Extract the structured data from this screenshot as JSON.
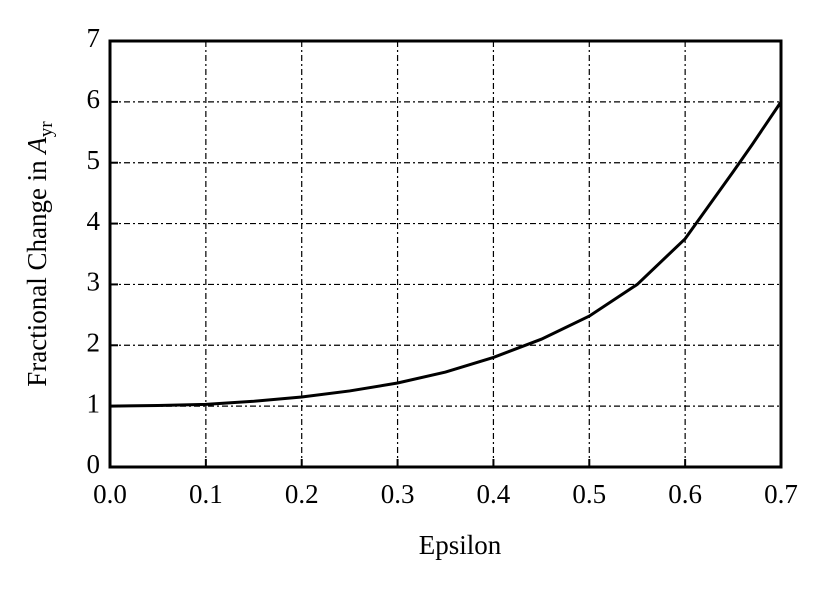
{
  "chart_data": {
    "type": "line",
    "xlabel": "Epsilon",
    "ylabel": {
      "text": "Fractional Change in ",
      "symbol": "A",
      "subscript": "yr"
    },
    "x": [
      0,
      0.05,
      0.1,
      0.15,
      0.2,
      0.25,
      0.3,
      0.35,
      0.4,
      0.45,
      0.5,
      0.55,
      0.6,
      0.65,
      0.67,
      0.7
    ],
    "series": [
      {
        "color": "#000000",
        "values": [
          1.0,
          1.01,
          1.03,
          1.08,
          1.15,
          1.25,
          1.38,
          1.56,
          1.8,
          2.1,
          2.48,
          3.0,
          3.75,
          4.85,
          5.3,
          6.0
        ]
      }
    ],
    "xlim": [
      0,
      0.7
    ],
    "xticks": [
      {
        "value": 0,
        "label": "0.0"
      },
      0.1,
      0.2,
      0.3,
      0.4,
      0.5,
      0.6,
      0.7
    ],
    "ylim": [
      0,
      7
    ],
    "yticks": [
      0,
      1,
      2,
      3,
      4,
      5,
      6,
      7
    ],
    "grid": true
  }
}
